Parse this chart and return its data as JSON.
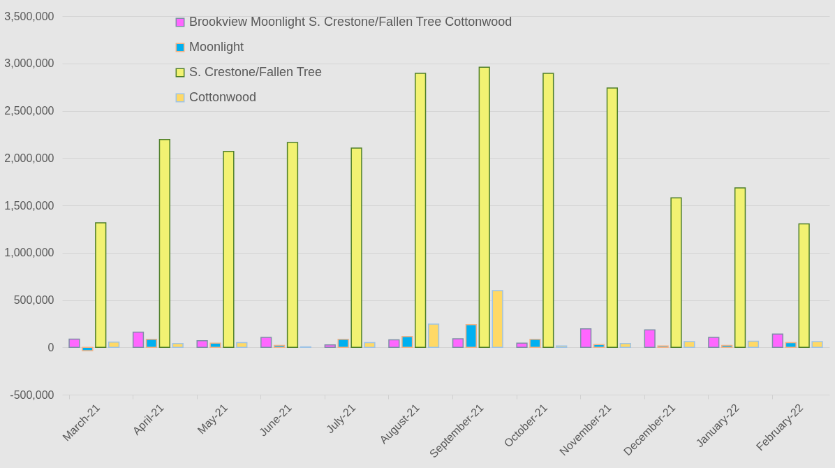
{
  "chart_data": {
    "type": "bar",
    "categories": [
      "March-21",
      "April-21",
      "May-21",
      "June-21",
      "July-21",
      "August-21",
      "September-21",
      "October-21",
      "November-21",
      "December-21",
      "January-22",
      "February-22"
    ],
    "series": [
      {
        "name": "Brookview Moonlight S. Crestone/Fallen Tree Cottonwood",
        "color": "#ff66ff",
        "values": [
          87000,
          160000,
          70000,
          105000,
          25000,
          80000,
          90000,
          45000,
          195000,
          185000,
          105000,
          140000
        ]
      },
      {
        "name": "Moonlight",
        "color": "#00b0f0",
        "values": [
          -35000,
          85000,
          45000,
          20000,
          85000,
          115000,
          240000,
          85000,
          30000,
          15000,
          20000,
          50000
        ]
      },
      {
        "name": "S. Crestone/Fallen Tree",
        "color": "#f2f272",
        "values": [
          1315000,
          2195000,
          2070000,
          2165000,
          2105000,
          2895000,
          2960000,
          2895000,
          2740000,
          1580000,
          1685000,
          1305000
        ]
      },
      {
        "name": "Cottonwood",
        "color": "#ffd966",
        "values": [
          55000,
          40000,
          50000,
          5000,
          50000,
          245000,
          600000,
          15000,
          40000,
          60000,
          65000,
          60000
        ]
      }
    ],
    "ylim": [
      -500000,
      3500000
    ],
    "yticks": [
      {
        "value": -500000,
        "label": "-500,000"
      },
      0,
      {
        "value": 500000,
        "label": "500,000"
      },
      {
        "value": 1000000,
        "label": "1,000,000"
      },
      {
        "value": 1500000,
        "label": "1,500,000"
      },
      {
        "value": 2000000,
        "label": "2,000,000"
      },
      {
        "value": 2500000,
        "label": "2,500,000"
      },
      {
        "value": 3000000,
        "label": "3,000,000"
      },
      {
        "value": 3500000,
        "label": "3,500,000"
      }
    ],
    "grid": "y",
    "legend": "top"
  }
}
